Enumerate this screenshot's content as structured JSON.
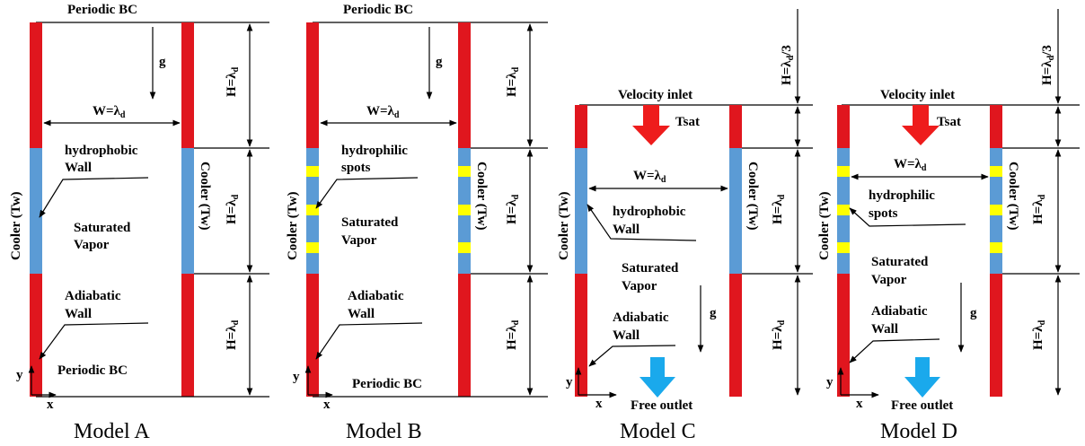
{
  "colors": {
    "adiabatic_wall": "#e0161e",
    "cooler_wall": "#5b9bd5",
    "hydrophilic_spot": "#ffff00",
    "flow_arrow_red": "#ee1c1c",
    "flow_arrow_blue": "#1aa9ec"
  },
  "common": {
    "periodic_bc": "Periodic BC",
    "gravity": "g",
    "width_label": "W=λ",
    "height_label": "H=λ",
    "height_third_label": "H=λ",
    "height_third_suffix": "/3",
    "subscript_d": "d",
    "cooler_label": "Cooler (Tw)",
    "saturated": "Saturated",
    "vapor": "Vapor",
    "adiabatic": "Adiabatic",
    "wall": "Wall",
    "hydrophobic": "hydrophobic",
    "hydrophilic": "hydrophilic",
    "spots": "spots",
    "velocity_inlet": "Velocity inlet",
    "tsat": "Tsat",
    "free_outlet": "Free outlet",
    "axis_x": "x",
    "axis_y": "y"
  },
  "models": [
    {
      "id": "A",
      "caption": "Model A"
    },
    {
      "id": "B",
      "caption": "Model B"
    },
    {
      "id": "C",
      "caption": "Model C"
    },
    {
      "id": "D",
      "caption": "Model D"
    }
  ]
}
